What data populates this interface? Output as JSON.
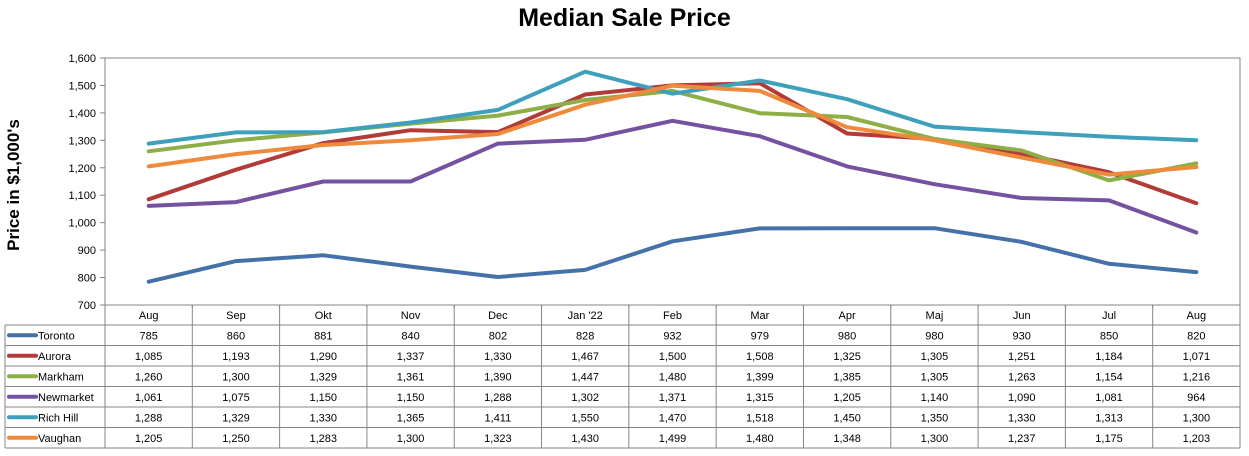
{
  "chart_data": {
    "type": "line",
    "title": "Median Sale Price",
    "ylabel": "Price in $1,000's",
    "xlabel": "",
    "ylim": [
      700,
      1600
    ],
    "yticks": [
      700,
      800,
      900,
      1000,
      1100,
      1200,
      1300,
      1400,
      1500,
      1600
    ],
    "ytick_labels": [
      "700",
      "800",
      "900",
      "1,000",
      "1,100",
      "1,200",
      "1,300",
      "1,400",
      "1,500",
      "1,600"
    ],
    "grid": false,
    "legend": "data-table",
    "categories": [
      "Aug",
      "Sep",
      "Okt",
      "Nov",
      "Dec",
      "Jan '22",
      "Feb",
      "Mar",
      "Apr",
      "Maj",
      "Jun",
      "Jul",
      "Aug"
    ],
    "series": [
      {
        "name": "Toronto",
        "color": "#4472A8",
        "values": [
          785,
          860,
          881,
          840,
          802,
          828,
          932,
          979,
          980,
          980,
          930,
          850,
          820
        ]
      },
      {
        "name": "Aurora",
        "color": "#B23B37",
        "values": [
          1085,
          1193,
          1290,
          1337,
          1330,
          1467,
          1500,
          1508,
          1325,
          1305,
          1251,
          1184,
          1071
        ]
      },
      {
        "name": "Markham",
        "color": "#8EAE47",
        "values": [
          1260,
          1300,
          1329,
          1361,
          1390,
          1447,
          1480,
          1399,
          1385,
          1305,
          1263,
          1154,
          1216
        ]
      },
      {
        "name": "Newmarket",
        "color": "#7452A0",
        "values": [
          1061,
          1075,
          1150,
          1150,
          1288,
          1302,
          1371,
          1315,
          1205,
          1140,
          1090,
          1081,
          964
        ]
      },
      {
        "name": "Rich Hill",
        "color": "#3FA0BC",
        "values": [
          1288,
          1329,
          1330,
          1365,
          1411,
          1550,
          1470,
          1518,
          1450,
          1350,
          1330,
          1313,
          1300
        ]
      },
      {
        "name": "Vaughan",
        "color": "#EE8A3C",
        "values": [
          1205,
          1250,
          1283,
          1300,
          1323,
          1430,
          1499,
          1480,
          1348,
          1300,
          1237,
          1175,
          1203
        ]
      }
    ],
    "table_labels": [
      [
        "785",
        "860",
        "881",
        "840",
        "802",
        "828",
        "932",
        "979",
        "980",
        "980",
        "930",
        "850",
        "820"
      ],
      [
        "1,085",
        "1,193",
        "1,290",
        "1,337",
        "1,330",
        "1,467",
        "1,500",
        "1,508",
        "1,325",
        "1,305",
        "1,251",
        "1,184",
        "1,071"
      ],
      [
        "1,260",
        "1,300",
        "1,329",
        "1,361",
        "1,390",
        "1,447",
        "1,480",
        "1,399",
        "1,385",
        "1,305",
        "1,263",
        "1,154",
        "1,216"
      ],
      [
        "1,061",
        "1,075",
        "1,150",
        "1,150",
        "1,288",
        "1,302",
        "1,371",
        "1,315",
        "1,205",
        "1,140",
        "1,090",
        "1,081",
        "964"
      ],
      [
        "1,288",
        "1,329",
        "1,330",
        "1,365",
        "1,411",
        "1,550",
        "1,470",
        "1,518",
        "1,450",
        "1,350",
        "1,330",
        "1,313",
        "1,300"
      ],
      [
        "1,205",
        "1,250",
        "1,283",
        "1,300",
        "1,323",
        "1,430",
        "1,499",
        "1,480",
        "1,348",
        "1,300",
        "1,237",
        "1,175",
        "1,203"
      ]
    ]
  }
}
